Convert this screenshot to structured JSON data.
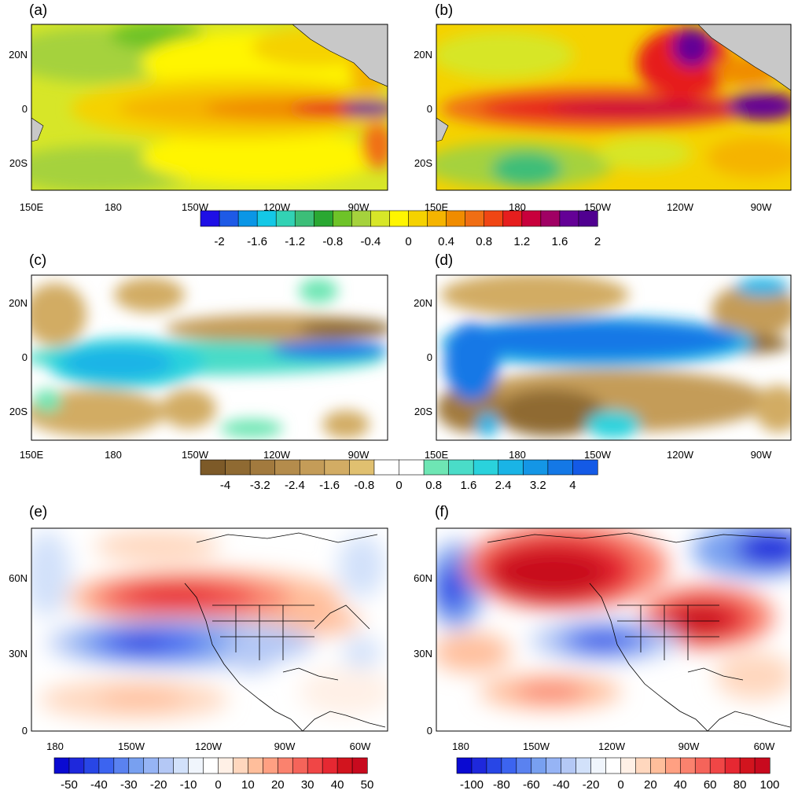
{
  "panels": [
    {
      "label": "(a)",
      "yticks": [
        "20N",
        "0",
        "20S"
      ],
      "xticks": [
        "150E",
        "180",
        "150W",
        "120W",
        "90W"
      ]
    },
    {
      "label": "(b)",
      "yticks": [
        "20N",
        "0",
        "20S"
      ],
      "xticks": [
        "150E",
        "180",
        "150W",
        "120W",
        "90W"
      ]
    },
    {
      "label": "(c)",
      "yticks": [
        "20N",
        "0",
        "20S"
      ],
      "xticks": [
        "150E",
        "180",
        "150W",
        "120W",
        "90W"
      ]
    },
    {
      "label": "(d)",
      "yticks": [
        "20N",
        "0",
        "20S"
      ],
      "xticks": [
        "150E",
        "180",
        "150W",
        "120W",
        "90W"
      ]
    },
    {
      "label": "(e)",
      "yticks": [
        "60N",
        "30N",
        "0"
      ],
      "xticks": [
        "180",
        "150W",
        "120W",
        "90W",
        "60W"
      ]
    },
    {
      "label": "(f)",
      "yticks": [
        "60N",
        "30N",
        "0"
      ],
      "xticks": [
        "180",
        "150W",
        "120W",
        "90W",
        "60W"
      ]
    }
  ],
  "colorbars": [
    {
      "labels": [
        "-2",
        "-1.6",
        "-1.2",
        "-0.8",
        "-0.4",
        "0",
        "0.4",
        "0.8",
        "1.2",
        "1.6",
        "2"
      ],
      "colors": [
        "#1e0fe6",
        "#1e5ae6",
        "#0a96e6",
        "#14c8e6",
        "#32d2b4",
        "#3cbe78",
        "#2aa832",
        "#6ec328",
        "#a5d23c",
        "#d7e628",
        "#fff500",
        "#f5d200",
        "#f5b400",
        "#f08c00",
        "#f06e14",
        "#f04614",
        "#e61e1e",
        "#c8003c",
        "#a00064",
        "#640096",
        "#500090"
      ]
    },
    {
      "labels": [
        "-4",
        "-3.2",
        "-2.4",
        "-1.6",
        "-0.8",
        "0",
        "0.8",
        "1.6",
        "2.4",
        "3.2",
        "4"
      ],
      "colors": [
        "#7d5a28",
        "#8f6a32",
        "#a27a3e",
        "#b48c4c",
        "#c49c58",
        "#d2ac64",
        "#e0c070",
        "#ffffff",
        "#ffffff",
        "#6ee6b4",
        "#4adcc8",
        "#2ad2dc",
        "#1ab4e6",
        "#1496e6",
        "#1478e6",
        "#145ae6"
      ]
    },
    {
      "labels": [
        "-50",
        "-40",
        "-30",
        "-20",
        "-10",
        "0",
        "10",
        "20",
        "30",
        "40",
        "50"
      ],
      "colors": [
        "#0a0ad2",
        "#1e28dc",
        "#2846e6",
        "#3c64f0",
        "#5a82f0",
        "#78a0f0",
        "#96b4f5",
        "#b4c8f5",
        "#d2e1fa",
        "#f0f5fc",
        "#ffffff",
        "#fff0e6",
        "#ffd7be",
        "#ffbe9b",
        "#ffa082",
        "#fa826e",
        "#f5645a",
        "#f04646",
        "#e62832",
        "#d2141e",
        "#c80a1e"
      ]
    },
    {
      "labels": [
        "-100",
        "-80",
        "-60",
        "-40",
        "-20",
        "0",
        "20",
        "40",
        "60",
        "80",
        "100"
      ],
      "colors": [
        "#0a0ad2",
        "#1e28dc",
        "#2846e6",
        "#3c64f0",
        "#5a82f0",
        "#78a0f0",
        "#96b4f5",
        "#b4c8f5",
        "#d2e1fa",
        "#f0f5fc",
        "#ffffff",
        "#fff0e6",
        "#ffd7be",
        "#ffbe9b",
        "#ffa082",
        "#fa826e",
        "#f5645a",
        "#f04646",
        "#e62832",
        "#d2141e",
        "#c80a1e"
      ]
    }
  ]
}
